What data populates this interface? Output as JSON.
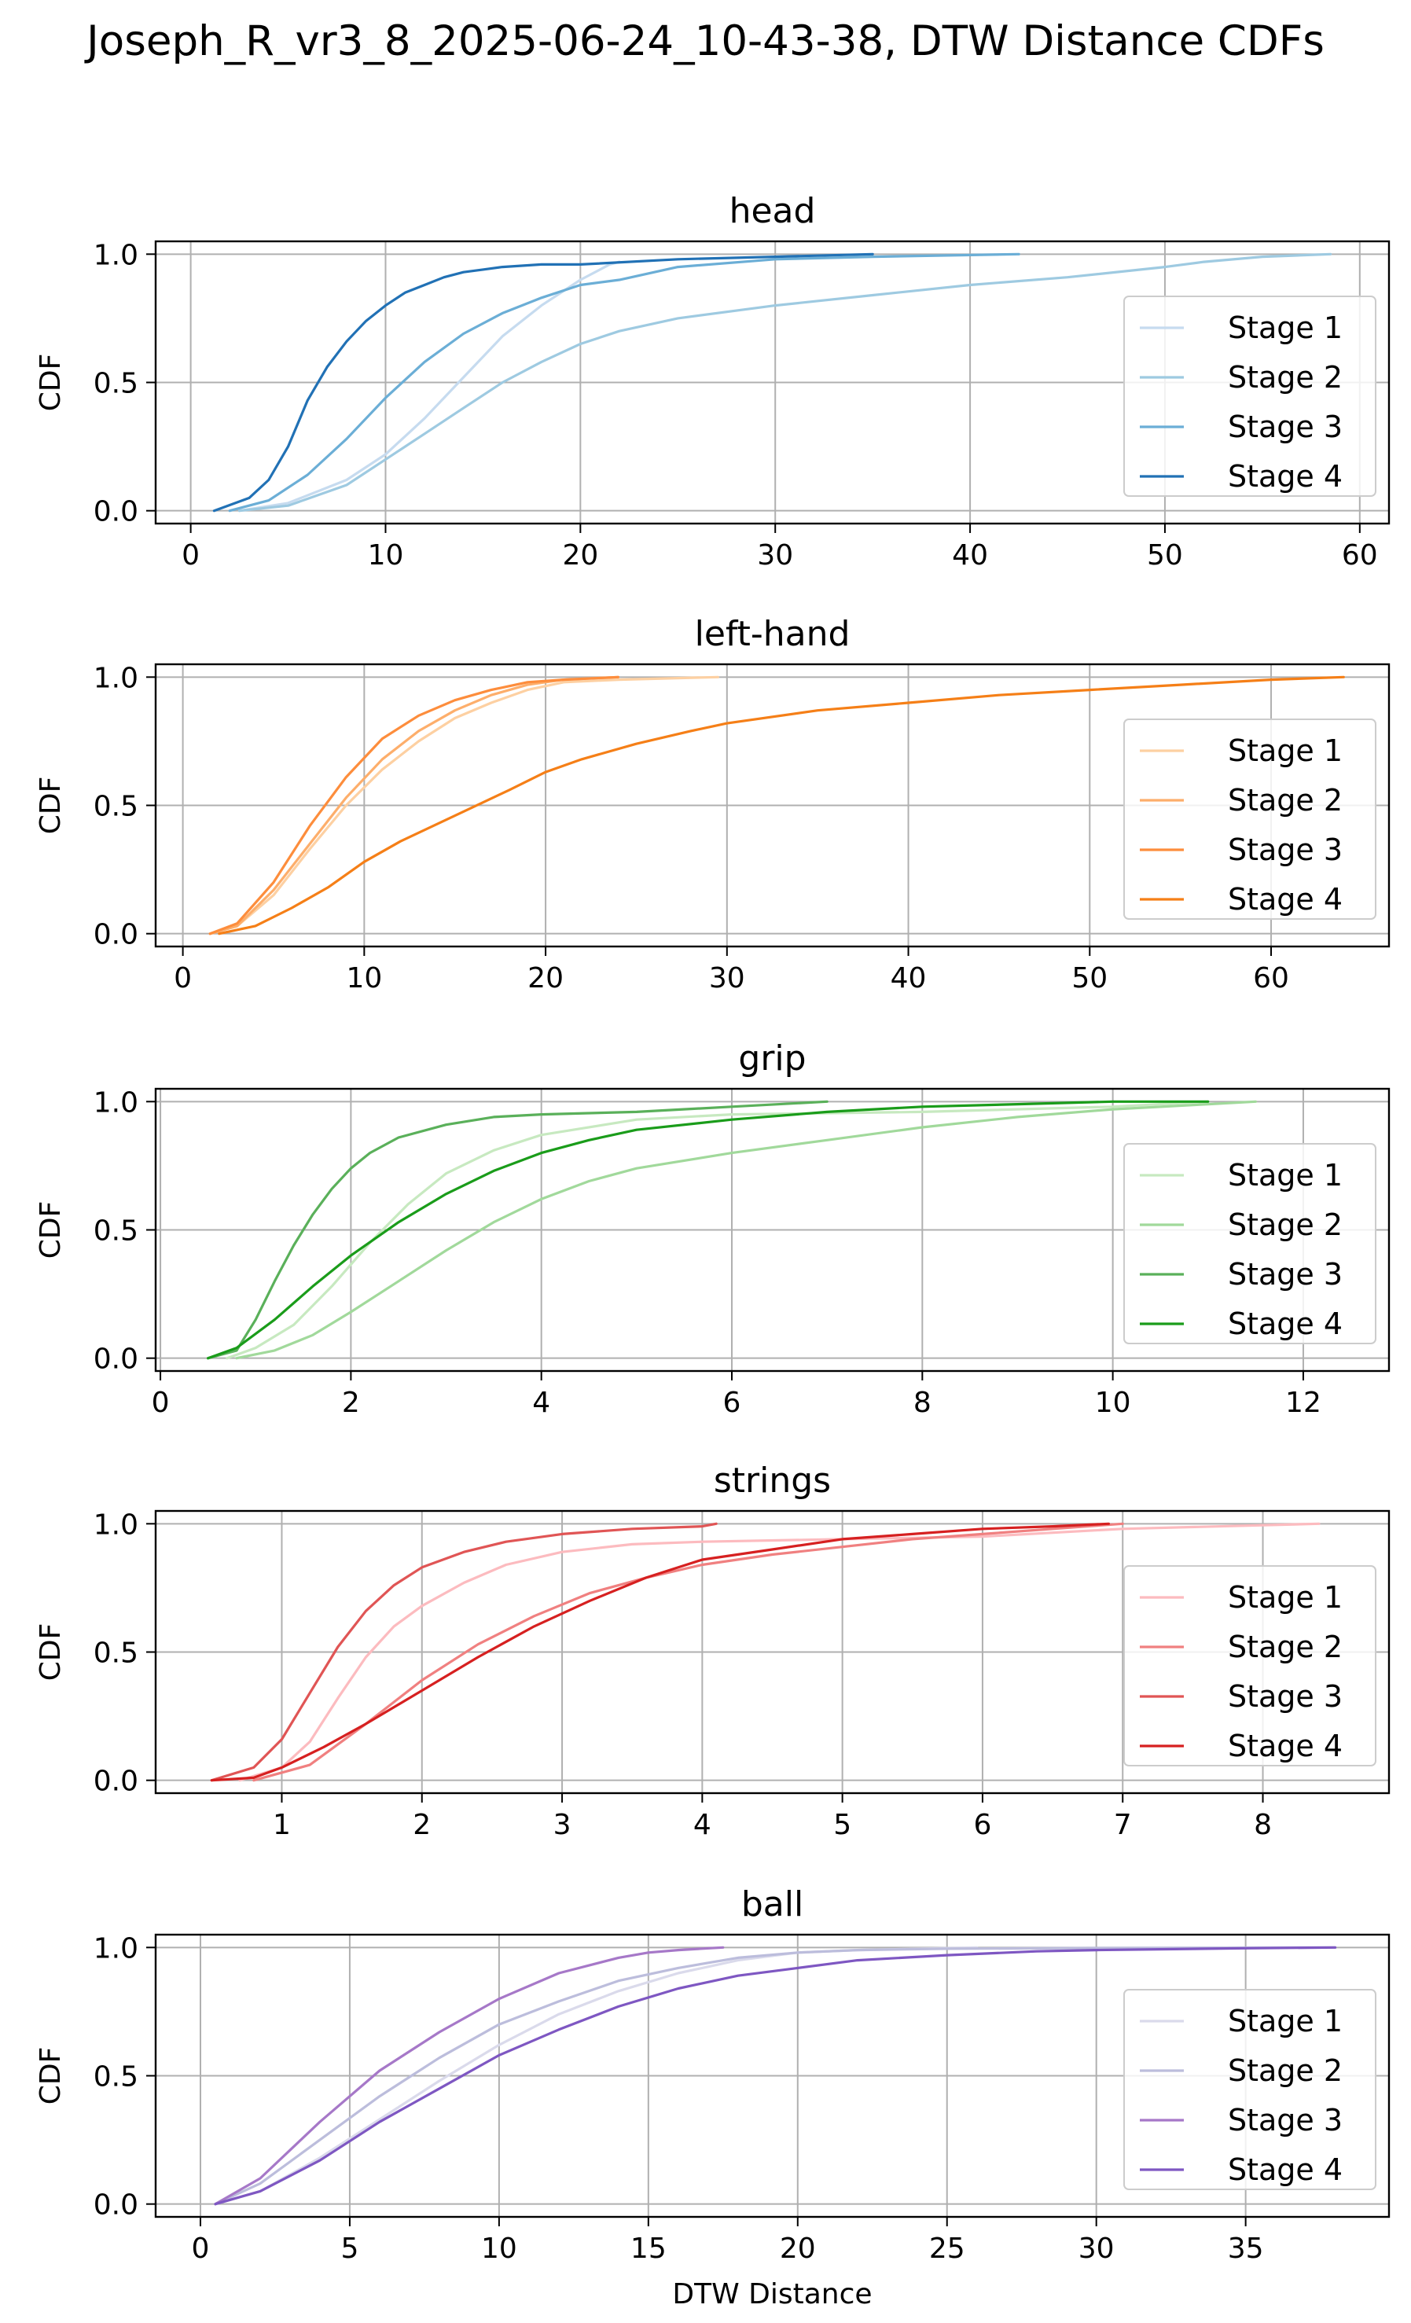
{
  "figure_title": "Joseph_R_vr3_8_2025-06-24_10-43-38, DTW Distance CDFs",
  "chart_data": [
    {
      "type": "line",
      "title": "head",
      "xlabel": "",
      "ylabel": "CDF",
      "xlim": [
        -1.8,
        61.5
      ],
      "ylim": [
        -0.05,
        1.05
      ],
      "xticks": [
        0,
        10,
        20,
        30,
        40,
        50,
        60
      ],
      "yticks": [
        0.0,
        0.5,
        1.0
      ],
      "ytick_labels": [
        "0.0",
        "0.5",
        "1.0"
      ],
      "grid": true,
      "legend": "right",
      "series": [
        {
          "name": "Stage 1",
          "color": "#c6dbef",
          "x": [
            2.5,
            5,
            8,
            10,
            12,
            14,
            16,
            18,
            20,
            21.5,
            22
          ],
          "y": [
            0,
            0.03,
            0.12,
            0.22,
            0.36,
            0.52,
            0.68,
            0.8,
            0.9,
            0.96,
            0.97
          ]
        },
        {
          "name": "Stage 2",
          "color": "#9ecae1",
          "x": [
            2.5,
            5,
            8,
            10,
            12,
            14,
            16,
            18,
            20,
            22,
            25,
            30,
            35,
            40,
            45,
            50,
            52,
            55,
            58.5
          ],
          "y": [
            0,
            0.02,
            0.1,
            0.2,
            0.3,
            0.4,
            0.5,
            0.58,
            0.65,
            0.7,
            0.75,
            0.8,
            0.84,
            0.88,
            0.91,
            0.95,
            0.97,
            0.99,
            1.0
          ]
        },
        {
          "name": "Stage 3",
          "color": "#6baed6",
          "x": [
            2,
            4,
            6,
            8,
            10,
            12,
            14,
            16,
            18,
            20,
            22,
            25,
            30,
            35,
            42.5
          ],
          "y": [
            0,
            0.04,
            0.14,
            0.28,
            0.44,
            0.58,
            0.69,
            0.77,
            0.83,
            0.88,
            0.9,
            0.95,
            0.98,
            0.99,
            1.0
          ]
        },
        {
          "name": "Stage 4",
          "color": "#2171b5",
          "x": [
            1.2,
            3,
            4,
            5,
            6,
            7,
            8,
            9,
            10,
            11,
            12,
            13,
            14,
            15,
            16,
            18,
            20,
            25,
            30,
            35
          ],
          "y": [
            0,
            0.05,
            0.12,
            0.25,
            0.43,
            0.56,
            0.66,
            0.74,
            0.8,
            0.85,
            0.88,
            0.91,
            0.93,
            0.94,
            0.95,
            0.96,
            0.96,
            0.98,
            0.99,
            1.0
          ]
        }
      ]
    },
    {
      "type": "line",
      "title": "left-hand",
      "xlabel": "",
      "ylabel": "CDF",
      "xlim": [
        -1.5,
        66.5
      ],
      "ylim": [
        -0.05,
        1.05
      ],
      "xticks": [
        0,
        10,
        20,
        30,
        40,
        50,
        60
      ],
      "yticks": [
        0.0,
        0.5,
        1.0
      ],
      "ytick_labels": [
        "0.0",
        "0.5",
        "1.0"
      ],
      "grid": true,
      "legend": "right",
      "series": [
        {
          "name": "Stage 1",
          "color": "#fdd0a2",
          "x": [
            1.5,
            3,
            5,
            7,
            9,
            11,
            13,
            15,
            17,
            19,
            21,
            24,
            29.5
          ],
          "y": [
            0,
            0.03,
            0.15,
            0.33,
            0.5,
            0.64,
            0.75,
            0.84,
            0.9,
            0.95,
            0.98,
            0.99,
            1.0
          ]
        },
        {
          "name": "Stage 2",
          "color": "#fdae6b",
          "x": [
            1.5,
            3,
            5,
            7,
            9,
            11,
            13,
            15,
            17,
            19,
            21,
            24
          ],
          "y": [
            0,
            0.03,
            0.17,
            0.35,
            0.53,
            0.68,
            0.79,
            0.87,
            0.93,
            0.97,
            0.99,
            1.0
          ]
        },
        {
          "name": "Stage 3",
          "color": "#fd8d3c",
          "x": [
            1.5,
            3,
            5,
            7,
            9,
            11,
            13,
            15,
            17,
            19,
            21,
            24
          ],
          "y": [
            0,
            0.04,
            0.2,
            0.42,
            0.61,
            0.76,
            0.85,
            0.91,
            0.95,
            0.98,
            0.99,
            1.0
          ]
        },
        {
          "name": "Stage 4",
          "color": "#f57f17",
          "x": [
            2,
            4,
            6,
            8,
            10,
            12,
            15,
            18,
            20,
            22,
            25,
            28,
            30,
            35,
            40,
            45,
            50,
            55,
            60,
            64
          ],
          "y": [
            0,
            0.03,
            0.1,
            0.18,
            0.28,
            0.36,
            0.46,
            0.56,
            0.63,
            0.68,
            0.74,
            0.79,
            0.82,
            0.87,
            0.9,
            0.93,
            0.95,
            0.97,
            0.99,
            1.0
          ]
        }
      ]
    },
    {
      "type": "line",
      "title": "grip",
      "xlabel": "",
      "ylabel": "CDF",
      "xlim": [
        -0.05,
        12.9
      ],
      "ylim": [
        -0.05,
        1.05
      ],
      "xticks": [
        0,
        2,
        4,
        6,
        8,
        10,
        12
      ],
      "yticks": [
        0.0,
        0.5,
        1.0
      ],
      "ytick_labels": [
        "0.0",
        "0.5",
        "1.0"
      ],
      "grid": true,
      "legend": "right",
      "series": [
        {
          "name": "Stage 1",
          "color": "#c7e9c0",
          "x": [
            0.7,
            1,
            1.4,
            1.8,
            2.2,
            2.6,
            3,
            3.5,
            4,
            5,
            6,
            8,
            10,
            11
          ],
          "y": [
            0,
            0.04,
            0.13,
            0.28,
            0.45,
            0.6,
            0.72,
            0.81,
            0.87,
            0.93,
            0.95,
            0.96,
            0.98,
            1.0
          ]
        },
        {
          "name": "Stage 2",
          "color": "#a1d99b",
          "x": [
            0.8,
            1.2,
            1.6,
            2,
            2.5,
            3,
            3.5,
            4,
            4.5,
            5,
            6,
            7,
            8,
            9,
            10,
            11,
            11.5
          ],
          "y": [
            0,
            0.03,
            0.09,
            0.18,
            0.3,
            0.42,
            0.53,
            0.62,
            0.69,
            0.74,
            0.8,
            0.85,
            0.9,
            0.94,
            0.97,
            0.99,
            1.0
          ]
        },
        {
          "name": "Stage 3",
          "color": "#5ab05a",
          "x": [
            0.5,
            0.8,
            1,
            1.2,
            1.4,
            1.6,
            1.8,
            2,
            2.2,
            2.5,
            3,
            3.5,
            4,
            5,
            6,
            7
          ],
          "y": [
            0,
            0.03,
            0.15,
            0.3,
            0.44,
            0.56,
            0.66,
            0.74,
            0.8,
            0.86,
            0.91,
            0.94,
            0.95,
            0.96,
            0.98,
            1.0
          ]
        },
        {
          "name": "Stage 4",
          "color": "#1a9c1a",
          "x": [
            0.5,
            0.8,
            1.2,
            1.6,
            2,
            2.5,
            3,
            3.5,
            4,
            4.5,
            5,
            6,
            7,
            8,
            9,
            10,
            11
          ],
          "y": [
            0,
            0.04,
            0.15,
            0.28,
            0.4,
            0.53,
            0.64,
            0.73,
            0.8,
            0.85,
            0.89,
            0.93,
            0.96,
            0.98,
            0.99,
            1.0,
            1.0
          ]
        }
      ]
    },
    {
      "type": "line",
      "title": "strings",
      "xlabel": "",
      "ylabel": "CDF",
      "xlim": [
        0.1,
        8.9
      ],
      "ylim": [
        -0.05,
        1.05
      ],
      "xticks": [
        1,
        2,
        3,
        4,
        5,
        6,
        7,
        8
      ],
      "yticks": [
        0.0,
        0.5,
        1.0
      ],
      "ytick_labels": [
        "0.0",
        "0.5",
        "1.0"
      ],
      "grid": true,
      "legend": "right",
      "series": [
        {
          "name": "Stage 1",
          "color": "#fcbbbf",
          "x": [
            0.7,
            1,
            1.2,
            1.4,
            1.6,
            1.8,
            2,
            2.3,
            2.6,
            3,
            3.5,
            4,
            5,
            6,
            7,
            8.4
          ],
          "y": [
            0,
            0.05,
            0.15,
            0.32,
            0.48,
            0.6,
            0.68,
            0.77,
            0.84,
            0.89,
            0.92,
            0.93,
            0.94,
            0.95,
            0.98,
            1.0
          ]
        },
        {
          "name": "Stage 2",
          "color": "#f08080",
          "x": [
            0.8,
            1.2,
            1.6,
            2,
            2.4,
            2.8,
            3.2,
            3.6,
            4,
            4.5,
            5,
            5.5,
            6,
            6.5,
            7
          ],
          "y": [
            0,
            0.06,
            0.22,
            0.39,
            0.53,
            0.64,
            0.73,
            0.79,
            0.84,
            0.88,
            0.91,
            0.94,
            0.96,
            0.98,
            1.0
          ]
        },
        {
          "name": "Stage 3",
          "color": "#e05555",
          "x": [
            0.5,
            0.8,
            1,
            1.2,
            1.4,
            1.6,
            1.8,
            2,
            2.3,
            2.6,
            3,
            3.5,
            4,
            4.1
          ],
          "y": [
            0,
            0.05,
            0.16,
            0.34,
            0.52,
            0.66,
            0.76,
            0.83,
            0.89,
            0.93,
            0.96,
            0.98,
            0.99,
            1.0
          ]
        },
        {
          "name": "Stage 4",
          "color": "#d62020",
          "x": [
            0.5,
            0.8,
            1,
            1.3,
            1.6,
            2,
            2.4,
            2.8,
            3.2,
            3.6,
            4,
            4.5,
            5,
            5.5,
            6,
            6.5,
            6.9
          ],
          "y": [
            0,
            0.01,
            0.05,
            0.13,
            0.22,
            0.35,
            0.48,
            0.6,
            0.7,
            0.79,
            0.86,
            0.9,
            0.94,
            0.96,
            0.98,
            0.99,
            1.0
          ]
        }
      ]
    },
    {
      "type": "line",
      "title": "ball",
      "xlabel": "DTW Distance",
      "ylabel": "CDF",
      "xlim": [
        -1.5,
        39.8
      ],
      "ylim": [
        -0.05,
        1.05
      ],
      "xticks": [
        0,
        5,
        10,
        15,
        20,
        25,
        30,
        35
      ],
      "yticks": [
        0.0,
        0.5,
        1.0
      ],
      "ytick_labels": [
        "0.0",
        "0.5",
        "1.0"
      ],
      "grid": true,
      "legend": "right",
      "series": [
        {
          "name": "Stage 1",
          "color": "#dadaeb",
          "x": [
            0.5,
            2,
            4,
            6,
            8,
            10,
            12,
            14,
            16,
            18,
            20,
            22,
            26
          ],
          "y": [
            0,
            0.05,
            0.18,
            0.33,
            0.48,
            0.62,
            0.74,
            0.83,
            0.9,
            0.95,
            0.98,
            0.99,
            1.0
          ]
        },
        {
          "name": "Stage 2",
          "color": "#bcbddc",
          "x": [
            0.5,
            2,
            4,
            6,
            8,
            10,
            12,
            14,
            16,
            18,
            20,
            22,
            25,
            30,
            38
          ],
          "y": [
            0,
            0.08,
            0.25,
            0.42,
            0.57,
            0.7,
            0.79,
            0.87,
            0.92,
            0.96,
            0.98,
            0.99,
            0.995,
            0.998,
            1.0
          ]
        },
        {
          "name": "Stage 3",
          "color": "#a678c8",
          "x": [
            0.5,
            2,
            4,
            6,
            8,
            10,
            12,
            14,
            15,
            16,
            17.5
          ],
          "y": [
            0,
            0.1,
            0.32,
            0.52,
            0.67,
            0.8,
            0.9,
            0.96,
            0.98,
            0.99,
            1.0
          ]
        },
        {
          "name": "Stage 4",
          "color": "#7e57c2",
          "x": [
            0.5,
            2,
            4,
            6,
            8,
            10,
            12,
            14,
            16,
            18,
            20,
            22,
            25,
            28,
            30,
            35,
            38
          ],
          "y": [
            0,
            0.05,
            0.17,
            0.32,
            0.45,
            0.58,
            0.68,
            0.77,
            0.84,
            0.89,
            0.92,
            0.95,
            0.97,
            0.985,
            0.99,
            0.997,
            1.0
          ]
        }
      ]
    }
  ]
}
